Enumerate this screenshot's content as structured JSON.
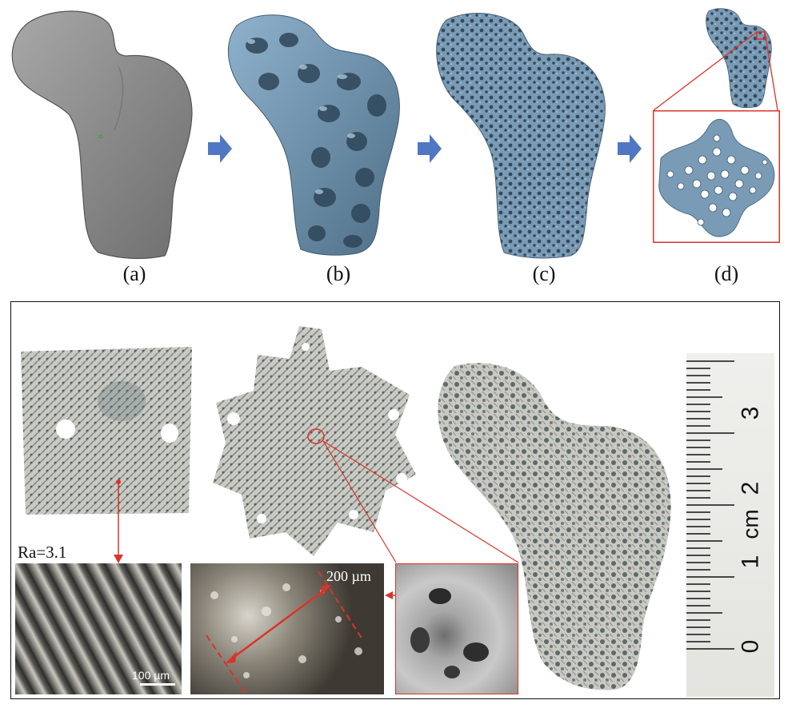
{
  "figure": {
    "top_row": {
      "panels": [
        {
          "id": "a",
          "caption": "(a)",
          "subject": "femur surface model"
        },
        {
          "id": "b",
          "caption": "(b)",
          "subject": "coarse lattice scaffold"
        },
        {
          "id": "c",
          "caption": "(c)",
          "subject": "fine lattice scaffold"
        },
        {
          "id": "d",
          "caption": "(d)",
          "subject": "lattice cross-section zoom"
        }
      ],
      "colors": {
        "bone_gray": "#8e8e8e",
        "scaffold_blue": "#7a9bb5",
        "arrow_blue": "#4f77c4",
        "zoom_red": "#d9342b"
      }
    },
    "bottom_panel": {
      "roughness_label": "Ra=3.1",
      "micro_scale_label": "100 µm",
      "macro_scale_label": "200 µm",
      "ruler": {
        "numbers": [
          "3",
          "2",
          "1",
          "0"
        ],
        "unit": "cm"
      }
    }
  }
}
